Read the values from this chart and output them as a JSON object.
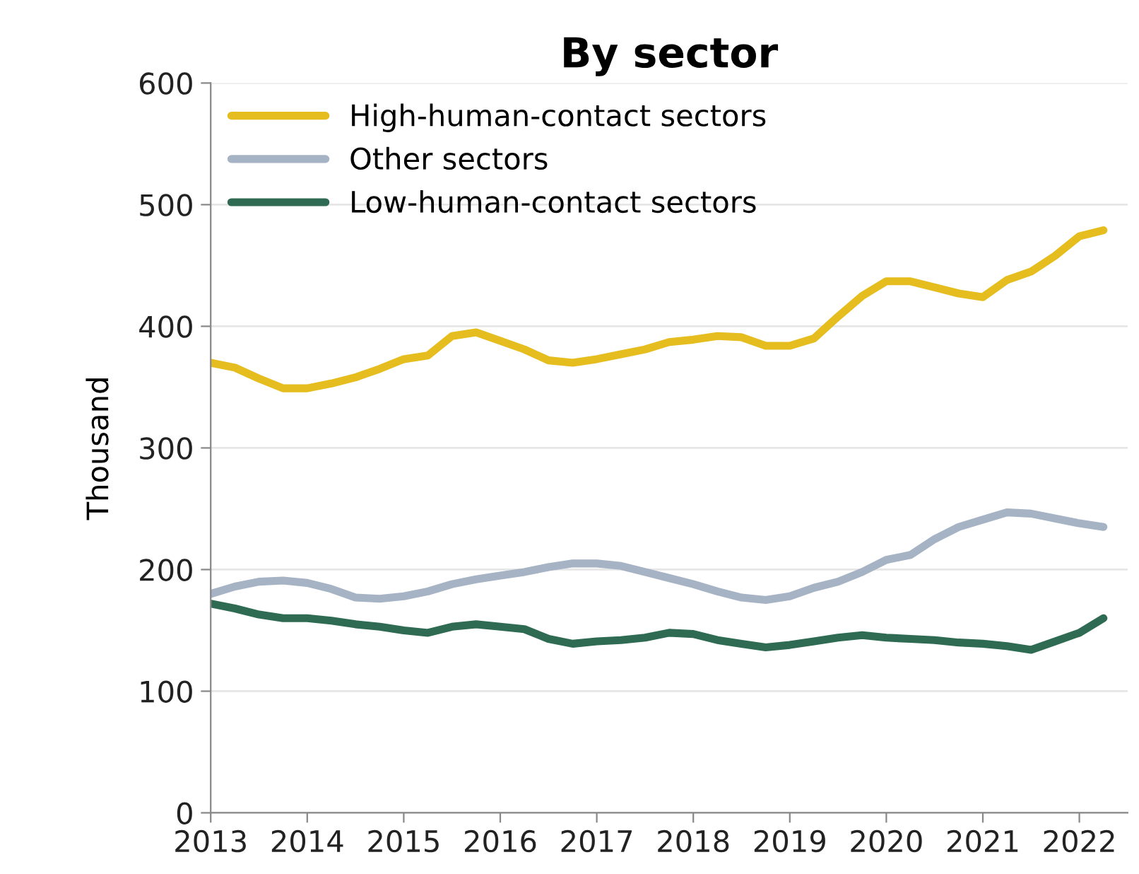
{
  "chart_data": {
    "type": "line",
    "title": "By sector",
    "ylabel": "Thousand",
    "x": [
      2013.0,
      2013.25,
      2013.5,
      2013.75,
      2014.0,
      2014.25,
      2014.5,
      2014.75,
      2015.0,
      2015.25,
      2015.5,
      2015.75,
      2016.0,
      2016.25,
      2016.5,
      2016.75,
      2017.0,
      2017.25,
      2017.5,
      2017.75,
      2018.0,
      2018.25,
      2018.5,
      2018.75,
      2019.0,
      2019.25,
      2019.5,
      2019.75,
      2020.0,
      2020.25,
      2020.5,
      2020.75,
      2021.0,
      2021.25,
      2021.5,
      2021.75,
      2022.0,
      2022.25
    ],
    "series": [
      {
        "name": "High-human-contact sectors",
        "color": "#e6bd1e",
        "values": [
          370,
          366,
          357,
          349,
          349,
          353,
          358,
          365,
          373,
          376,
          392,
          395,
          388,
          381,
          372,
          370,
          373,
          377,
          381,
          387,
          389,
          392,
          391,
          384,
          384,
          390,
          408,
          425,
          437,
          437,
          432,
          427,
          424,
          438,
          445,
          458,
          474,
          479
        ]
      },
      {
        "name": "Other sectors",
        "color": "#a5b3c4",
        "values": [
          180,
          186,
          190,
          191,
          189,
          184,
          177,
          176,
          178,
          182,
          188,
          192,
          195,
          198,
          202,
          205,
          205,
          203,
          198,
          193,
          188,
          182,
          177,
          175,
          178,
          185,
          190,
          198,
          208,
          212,
          225,
          235,
          241,
          247,
          246,
          242,
          238,
          235
        ]
      },
      {
        "name": "Low-human-contact sectors",
        "color": "#2e6b52",
        "values": [
          172,
          168,
          163,
          160,
          160,
          158,
          155,
          153,
          150,
          148,
          153,
          155,
          153,
          151,
          143,
          139,
          141,
          142,
          144,
          148,
          147,
          142,
          139,
          136,
          138,
          141,
          144,
          146,
          144,
          143,
          142,
          140,
          139,
          137,
          134,
          141,
          148,
          160
        ]
      }
    ],
    "xlim": [
      2013,
      2022.5
    ],
    "xticks": [
      2013,
      2014,
      2015,
      2016,
      2017,
      2018,
      2019,
      2020,
      2021,
      2022
    ],
    "ylim": [
      0,
      600
    ],
    "yticks": [
      0,
      100,
      200,
      300,
      400,
      500,
      600
    ],
    "grid": "y",
    "legend": "top left",
    "line_style": "solid",
    "marker": "none"
  }
}
